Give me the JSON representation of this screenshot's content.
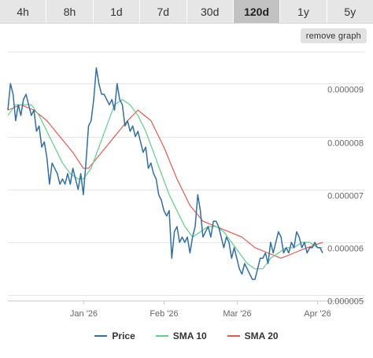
{
  "tabs": [
    {
      "label": "4h",
      "active": false
    },
    {
      "label": "8h",
      "active": false
    },
    {
      "label": "1d",
      "active": false
    },
    {
      "label": "7d",
      "active": false
    },
    {
      "label": "30d",
      "active": false
    },
    {
      "label": "120d",
      "active": true
    },
    {
      "label": "1y",
      "active": false
    },
    {
      "label": "5y",
      "active": false
    }
  ],
  "remove_button": "remove graph",
  "legend": [
    {
      "label": "Price",
      "color": "#2f6fa8"
    },
    {
      "label": "SMA 10",
      "color": "#5dd08a"
    },
    {
      "label": "SMA 20",
      "color": "#e8584f"
    }
  ],
  "chart_data": {
    "type": "line",
    "title": "",
    "xlabel": "",
    "ylabel": "",
    "x_range": [
      "2025-12-03",
      "2026-04-03"
    ],
    "ylim": [
      4.9e-06,
      9.6e-06
    ],
    "x_ticks": [
      {
        "label": "Jan '26",
        "date": "2026-01-01"
      },
      {
        "label": "Feb '26",
        "date": "2026-02-01"
      },
      {
        "label": "Mar '26",
        "date": "2026-03-01"
      },
      {
        "label": "Apr '26",
        "date": "2026-04-01"
      }
    ],
    "y_ticks": [
      {
        "label": "0.000005",
        "value": 5e-06
      },
      {
        "label": "0.000006",
        "value": 6e-06
      },
      {
        "label": "0.000007",
        "value": 7e-06
      },
      {
        "label": "0.000008",
        "value": 8e-06
      },
      {
        "label": "0.000009",
        "value": 9e-06
      }
    ],
    "grid": true,
    "legend_position": "bottom",
    "series": [
      {
        "name": "Price",
        "color": "#2f6fa8",
        "points": [
          [
            "2025-12-03",
            8.5e-06
          ],
          [
            "2025-12-04",
            9e-06
          ],
          [
            "2025-12-05",
            8.8e-06
          ],
          [
            "2025-12-06",
            8.3e-06
          ],
          [
            "2025-12-07",
            8.6e-06
          ],
          [
            "2025-12-08",
            8.4e-06
          ],
          [
            "2025-12-09",
            8.7e-06
          ],
          [
            "2025-12-10",
            8.8e-06
          ],
          [
            "2025-12-11",
            8.6e-06
          ],
          [
            "2025-12-12",
            8.4e-06
          ],
          [
            "2025-12-13",
            8.5e-06
          ],
          [
            "2025-12-14",
            8.1e-06
          ],
          [
            "2025-12-15",
            8.2e-06
          ],
          [
            "2025-12-16",
            7.8e-06
          ],
          [
            "2025-12-17",
            7.9e-06
          ],
          [
            "2025-12-18",
            7.6e-06
          ],
          [
            "2025-12-19",
            7.1e-06
          ],
          [
            "2025-12-20",
            7.5e-06
          ],
          [
            "2025-12-21",
            7.4e-06
          ],
          [
            "2025-12-22",
            7.3e-06
          ],
          [
            "2025-12-23",
            7.1e-06
          ],
          [
            "2025-12-24",
            7.2e-06
          ],
          [
            "2025-12-25",
            7.1e-06
          ],
          [
            "2025-12-26",
            7.3e-06
          ],
          [
            "2025-12-27",
            7.1e-06
          ],
          [
            "2025-12-28",
            7.4e-06
          ],
          [
            "2025-12-29",
            7.2e-06
          ],
          [
            "2025-12-30",
            7e-06
          ],
          [
            "2025-12-31",
            7.3e-06
          ],
          [
            "2026-01-01",
            6.9e-06
          ],
          [
            "2026-01-02",
            7.5e-06
          ],
          [
            "2026-01-03",
            8.2e-06
          ],
          [
            "2026-01-04",
            8.3e-06
          ],
          [
            "2026-01-05",
            8.7e-06
          ],
          [
            "2026-01-06",
            9.3e-06
          ],
          [
            "2026-01-07",
            9e-06
          ],
          [
            "2026-01-08",
            8.8e-06
          ],
          [
            "2026-01-09",
            8.8e-06
          ],
          [
            "2026-01-10",
            8.7e-06
          ],
          [
            "2026-01-11",
            8.6e-06
          ],
          [
            "2026-01-12",
            8.7e-06
          ],
          [
            "2026-01-13",
            8.5e-06
          ],
          [
            "2026-01-14",
            9e-06
          ],
          [
            "2026-01-15",
            8.7e-06
          ],
          [
            "2026-01-16",
            8.6e-06
          ],
          [
            "2026-01-17",
            8.2e-06
          ],
          [
            "2026-01-18",
            8.3e-06
          ],
          [
            "2026-01-19",
            8.1e-06
          ],
          [
            "2026-01-20",
            8.2e-06
          ],
          [
            "2026-01-21",
            8e-06
          ],
          [
            "2026-01-22",
            8.1e-06
          ],
          [
            "2026-01-23",
            7.9e-06
          ],
          [
            "2026-01-24",
            7.7e-06
          ],
          [
            "2026-01-25",
            7.8e-06
          ],
          [
            "2026-01-26",
            7.4e-06
          ],
          [
            "2026-01-27",
            7.5e-06
          ],
          [
            "2026-01-28",
            7.3e-06
          ],
          [
            "2026-01-29",
            7.2e-06
          ],
          [
            "2026-01-30",
            6.9e-06
          ],
          [
            "2026-01-31",
            6.8e-06
          ],
          [
            "2026-02-01",
            6.6e-06
          ],
          [
            "2026-02-02",
            6.5e-06
          ],
          [
            "2026-02-03",
            6.6e-06
          ],
          [
            "2026-02-04",
            5.7e-06
          ],
          [
            "2026-02-05",
            6.2e-06
          ],
          [
            "2026-02-06",
            6.3e-06
          ],
          [
            "2026-02-07",
            6e-06
          ],
          [
            "2026-02-08",
            6.1e-06
          ],
          [
            "2026-02-09",
            6e-06
          ],
          [
            "2026-02-10",
            6.1e-06
          ],
          [
            "2026-02-11",
            5.8e-06
          ],
          [
            "2026-02-12",
            6.1e-06
          ],
          [
            "2026-02-13",
            6.3e-06
          ],
          [
            "2026-02-14",
            6.9e-06
          ],
          [
            "2026-02-15",
            6.6e-06
          ],
          [
            "2026-02-16",
            6.1e-06
          ],
          [
            "2026-02-17",
            6.2e-06
          ],
          [
            "2026-02-18",
            6.3e-06
          ],
          [
            "2026-02-19",
            6.1e-06
          ],
          [
            "2026-02-20",
            6.4e-06
          ],
          [
            "2026-02-21",
            6.4e-06
          ],
          [
            "2026-02-22",
            6.3e-06
          ],
          [
            "2026-02-23",
            6.1e-06
          ],
          [
            "2026-02-24",
            5.9e-06
          ],
          [
            "2026-02-25",
            6.1e-06
          ],
          [
            "2026-02-26",
            6e-06
          ],
          [
            "2026-02-27",
            5.7e-06
          ],
          [
            "2026-02-28",
            5.9e-06
          ],
          [
            "2026-03-01",
            5.7e-06
          ],
          [
            "2026-03-02",
            5.5e-06
          ],
          [
            "2026-03-03",
            5.4e-06
          ],
          [
            "2026-03-04",
            5.6e-06
          ],
          [
            "2026-03-05",
            5.5e-06
          ],
          [
            "2026-03-06",
            5.4e-06
          ],
          [
            "2026-03-07",
            5.3e-06
          ],
          [
            "2026-03-08",
            5.3e-06
          ],
          [
            "2026-03-09",
            5.5e-06
          ],
          [
            "2026-03-10",
            5.7e-06
          ],
          [
            "2026-03-11",
            5.7e-06
          ],
          [
            "2026-03-12",
            5.8e-06
          ],
          [
            "2026-03-13",
            5.6e-06
          ],
          [
            "2026-03-14",
            6e-06
          ],
          [
            "2026-03-15",
            5.8e-06
          ],
          [
            "2026-03-16",
            6e-06
          ],
          [
            "2026-03-17",
            6.2e-06
          ],
          [
            "2026-03-18",
            6.1e-06
          ],
          [
            "2026-03-19",
            5.8e-06
          ],
          [
            "2026-03-20",
            5.9e-06
          ],
          [
            "2026-03-21",
            5.8e-06
          ],
          [
            "2026-03-22",
            6e-06
          ],
          [
            "2026-03-23",
            5.9e-06
          ],
          [
            "2026-03-24",
            6.2e-06
          ],
          [
            "2026-03-25",
            6.1e-06
          ],
          [
            "2026-03-26",
            5.9e-06
          ],
          [
            "2026-03-27",
            6e-06
          ],
          [
            "2026-03-28",
            5.8e-06
          ],
          [
            "2026-03-29",
            5.9e-06
          ],
          [
            "2026-03-30",
            5.9e-06
          ],
          [
            "2026-03-31",
            6e-06
          ],
          [
            "2026-04-01",
            5.9e-06
          ],
          [
            "2026-04-02",
            5.9e-06
          ],
          [
            "2026-04-03",
            5.8e-06
          ]
        ]
      },
      {
        "name": "SMA 10",
        "color": "#5dd08a",
        "points": [
          [
            "2025-12-03",
            8.4e-06
          ],
          [
            "2025-12-06",
            8.6e-06
          ],
          [
            "2025-12-09",
            8.6e-06
          ],
          [
            "2025-12-12",
            8.6e-06
          ],
          [
            "2025-12-15",
            8.4e-06
          ],
          [
            "2025-12-18",
            8.1e-06
          ],
          [
            "2025-12-21",
            7.8e-06
          ],
          [
            "2025-12-24",
            7.5e-06
          ],
          [
            "2025-12-27",
            7.3e-06
          ],
          [
            "2025-12-30",
            7.2e-06
          ],
          [
            "2026-01-01",
            7.2e-06
          ],
          [
            "2026-01-04",
            7.4e-06
          ],
          [
            "2026-01-07",
            7.8e-06
          ],
          [
            "2026-01-10",
            8.2e-06
          ],
          [
            "2026-01-13",
            8.6e-06
          ],
          [
            "2026-01-16",
            8.7e-06
          ],
          [
            "2026-01-19",
            8.6e-06
          ],
          [
            "2026-01-22",
            8.4e-06
          ],
          [
            "2026-01-25",
            8.1e-06
          ],
          [
            "2026-01-28",
            7.7e-06
          ],
          [
            "2026-01-31",
            7.3e-06
          ],
          [
            "2026-02-03",
            6.9e-06
          ],
          [
            "2026-02-06",
            6.6e-06
          ],
          [
            "2026-02-09",
            6.3e-06
          ],
          [
            "2026-02-12",
            6.1e-06
          ],
          [
            "2026-02-15",
            6.2e-06
          ],
          [
            "2026-02-18",
            6.3e-06
          ],
          [
            "2026-02-21",
            6.3e-06
          ],
          [
            "2026-02-24",
            6.2e-06
          ],
          [
            "2026-02-27",
            6e-06
          ],
          [
            "2026-03-02",
            5.8e-06
          ],
          [
            "2026-03-05",
            5.6e-06
          ],
          [
            "2026-03-08",
            5.5e-06
          ],
          [
            "2026-03-11",
            5.5e-06
          ],
          [
            "2026-03-14",
            5.7e-06
          ],
          [
            "2026-03-17",
            5.8e-06
          ],
          [
            "2026-03-20",
            5.9e-06
          ],
          [
            "2026-03-23",
            5.9e-06
          ],
          [
            "2026-03-26",
            6e-06
          ],
          [
            "2026-03-29",
            6e-06
          ],
          [
            "2026-04-01",
            5.9e-06
          ],
          [
            "2026-04-03",
            5.9e-06
          ]
        ]
      },
      {
        "name": "SMA 20",
        "color": "#e8584f",
        "points": [
          [
            "2025-12-03",
            8.5e-06
          ],
          [
            "2025-12-08",
            8.6e-06
          ],
          [
            "2025-12-13",
            8.5e-06
          ],
          [
            "2025-12-18",
            8.3e-06
          ],
          [
            "2025-12-23",
            8e-06
          ],
          [
            "2025-12-28",
            7.7e-06
          ],
          [
            "2026-01-01",
            7.4e-06
          ],
          [
            "2026-01-03",
            7.4e-06
          ],
          [
            "2026-01-08",
            7.7e-06
          ],
          [
            "2026-01-13",
            8e-06
          ],
          [
            "2026-01-18",
            8.3e-06
          ],
          [
            "2026-01-22",
            8.5e-06
          ],
          [
            "2026-01-27",
            8.3e-06
          ],
          [
            "2026-02-01",
            7.8e-06
          ],
          [
            "2026-02-06",
            7.2e-06
          ],
          [
            "2026-02-11",
            6.7e-06
          ],
          [
            "2026-02-16",
            6.4e-06
          ],
          [
            "2026-02-21",
            6.3e-06
          ],
          [
            "2026-02-26",
            6.2e-06
          ],
          [
            "2026-03-03",
            6.1e-06
          ],
          [
            "2026-03-08",
            5.9e-06
          ],
          [
            "2026-03-13",
            5.8e-06
          ],
          [
            "2026-03-18",
            5.7e-06
          ],
          [
            "2026-03-23",
            5.8e-06
          ],
          [
            "2026-03-28",
            5.9e-06
          ],
          [
            "2026-04-03",
            6e-06
          ]
        ]
      }
    ]
  }
}
